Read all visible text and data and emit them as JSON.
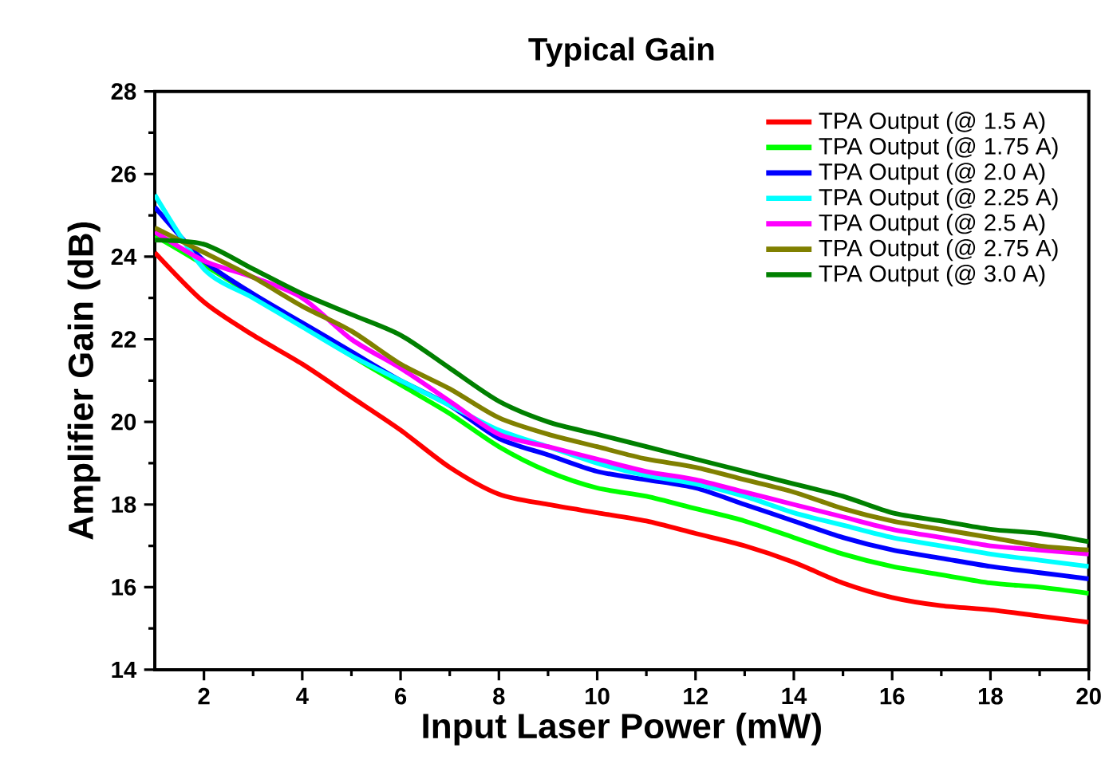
{
  "chart_data": {
    "type": "line",
    "title": "Typical Gain",
    "xlabel": "Input Laser Power (mW)",
    "ylabel": "Amplifier Gain (dB)",
    "x": [
      1,
      2,
      3,
      4,
      5,
      6,
      7,
      8,
      9,
      10,
      11,
      12,
      13,
      14,
      15,
      16,
      17,
      18,
      19,
      20
    ],
    "xlim": [
      1,
      20
    ],
    "ylim": [
      14,
      28
    ],
    "xticks": [
      2,
      4,
      6,
      8,
      10,
      12,
      14,
      16,
      18,
      20
    ],
    "yticks": [
      14,
      16,
      18,
      20,
      22,
      24,
      26,
      28
    ],
    "legend": "top right",
    "line_style": "solid",
    "marker": "none",
    "series": [
      {
        "name": "TPA Output (@ 1.5 A)",
        "color": "#ff0000",
        "values": [
          24.1,
          22.9,
          22.1,
          21.4,
          20.6,
          19.8,
          18.9,
          18.25,
          18.0,
          17.8,
          17.6,
          17.3,
          17.0,
          16.6,
          16.1,
          15.75,
          15.55,
          15.45,
          15.3,
          15.15
        ]
      },
      {
        "name": "TPA Output (@ 1.75 A)",
        "color": "#00ff00",
        "values": [
          24.5,
          23.8,
          null,
          null,
          21.6,
          20.9,
          20.2,
          19.4,
          18.8,
          18.4,
          18.2,
          17.9,
          17.6,
          17.2,
          16.8,
          16.5,
          16.3,
          16.1,
          16.0,
          15.85
        ]
      },
      {
        "name": "TPA Output (@ 2.0 A)",
        "color": "#0000ff",
        "values": [
          25.2,
          23.9,
          23.1,
          22.4,
          21.7,
          21.0,
          20.4,
          19.6,
          19.2,
          18.8,
          18.6,
          18.4,
          18.0,
          17.6,
          17.2,
          16.9,
          16.7,
          16.5,
          16.35,
          16.2
        ]
      },
      {
        "name": "TPA Output (@ 2.25 A)",
        "color": "#00ffff",
        "values": [
          25.5,
          23.7,
          23.0,
          22.3,
          21.6,
          21.0,
          20.4,
          19.8,
          19.4,
          19.0,
          18.7,
          18.5,
          18.2,
          17.8,
          17.5,
          17.2,
          17.0,
          16.8,
          16.65,
          16.5
        ]
      },
      {
        "name": "TPA Output (@ 2.5 A)",
        "color": "#ff00ff",
        "values": [
          24.6,
          23.9,
          23.5,
          23.0,
          22.0,
          21.3,
          20.5,
          19.7,
          19.4,
          19.1,
          18.8,
          18.6,
          18.3,
          18.0,
          17.7,
          17.4,
          17.2,
          17.0,
          16.9,
          16.8
        ]
      },
      {
        "name": "TPA Output (@ 2.75 A)",
        "color": "#808000",
        "values": [
          24.7,
          24.1,
          23.5,
          22.8,
          22.2,
          21.4,
          20.8,
          20.1,
          19.7,
          19.4,
          19.1,
          18.9,
          18.6,
          18.3,
          17.9,
          17.6,
          17.4,
          17.2,
          17.0,
          16.9
        ]
      },
      {
        "name": "TPA Output (@ 3.0 A)",
        "color": "#008000",
        "values": [
          24.4,
          24.3,
          23.7,
          23.1,
          22.6,
          22.1,
          21.3,
          20.5,
          20.0,
          19.7,
          19.4,
          19.1,
          18.8,
          18.5,
          18.2,
          17.8,
          17.6,
          17.4,
          17.3,
          17.1
        ]
      }
    ]
  }
}
